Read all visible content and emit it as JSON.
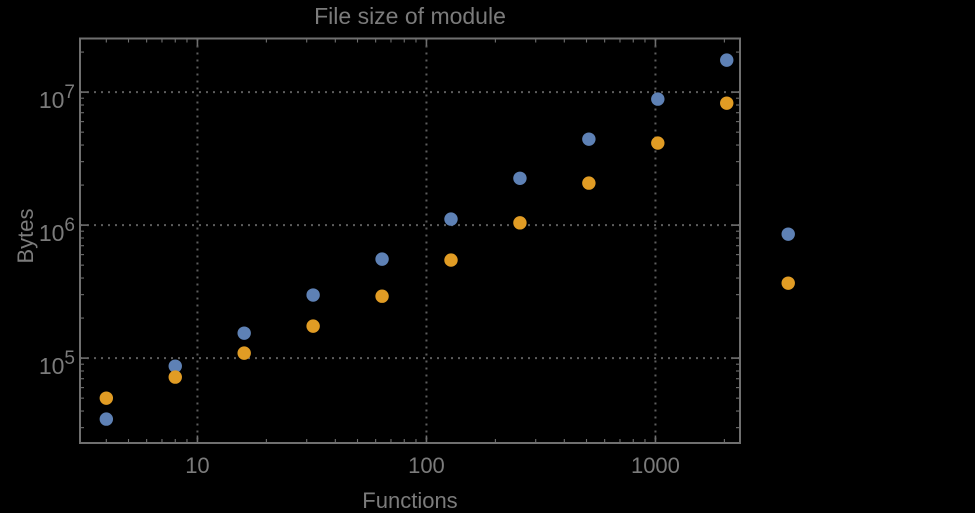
{
  "chart_data": {
    "type": "scatter",
    "title": "File size of module",
    "xlabel": "Functions",
    "ylabel": "Bytes",
    "x_scale": "log",
    "y_scale": "log",
    "xlim": [
      3.07,
      2340
    ],
    "ylim": [
      23000,
      25300000
    ],
    "x_major_ticks": [
      10,
      100,
      1000
    ],
    "y_major_ticks": [
      100000,
      1000000,
      10000000
    ],
    "x_tick_labels": [
      "10",
      "100",
      "1000"
    ],
    "y_tick_labels": [
      {
        "base": "10",
        "exp": "5"
      },
      {
        "base": "10",
        "exp": "6"
      },
      {
        "base": "10",
        "exp": "7"
      }
    ],
    "grid": {
      "style": "dotted",
      "at": "major-ticks"
    },
    "legend": null,
    "frame": true,
    "note": "last pair of points is drawn outside the right edge of the plot frame",
    "series": [
      {
        "name": "blue",
        "color": "#5E81B5",
        "x": [
          4,
          8,
          16,
          32,
          64,
          128,
          256,
          512,
          1024,
          2048,
          3800
        ],
        "y": [
          34800,
          87000,
          154000,
          298000,
          555000,
          1110000,
          2250000,
          4430000,
          8860000,
          17400000,
          855000
        ]
      },
      {
        "name": "orange",
        "color": "#E19C24",
        "x": [
          4,
          8,
          16,
          32,
          64,
          128,
          256,
          512,
          1024,
          2048,
          3800
        ],
        "y": [
          50000,
          72000,
          109000,
          174000,
          292000,
          546000,
          1040000,
          2070000,
          4140000,
          8260000,
          366000
        ]
      }
    ]
  },
  "style": {
    "background": "#000000",
    "text_color": "#7b7b7b",
    "frame_color": "#6f6f6f",
    "grid_color": "#5d5d5d",
    "point_radius": 6.7
  }
}
